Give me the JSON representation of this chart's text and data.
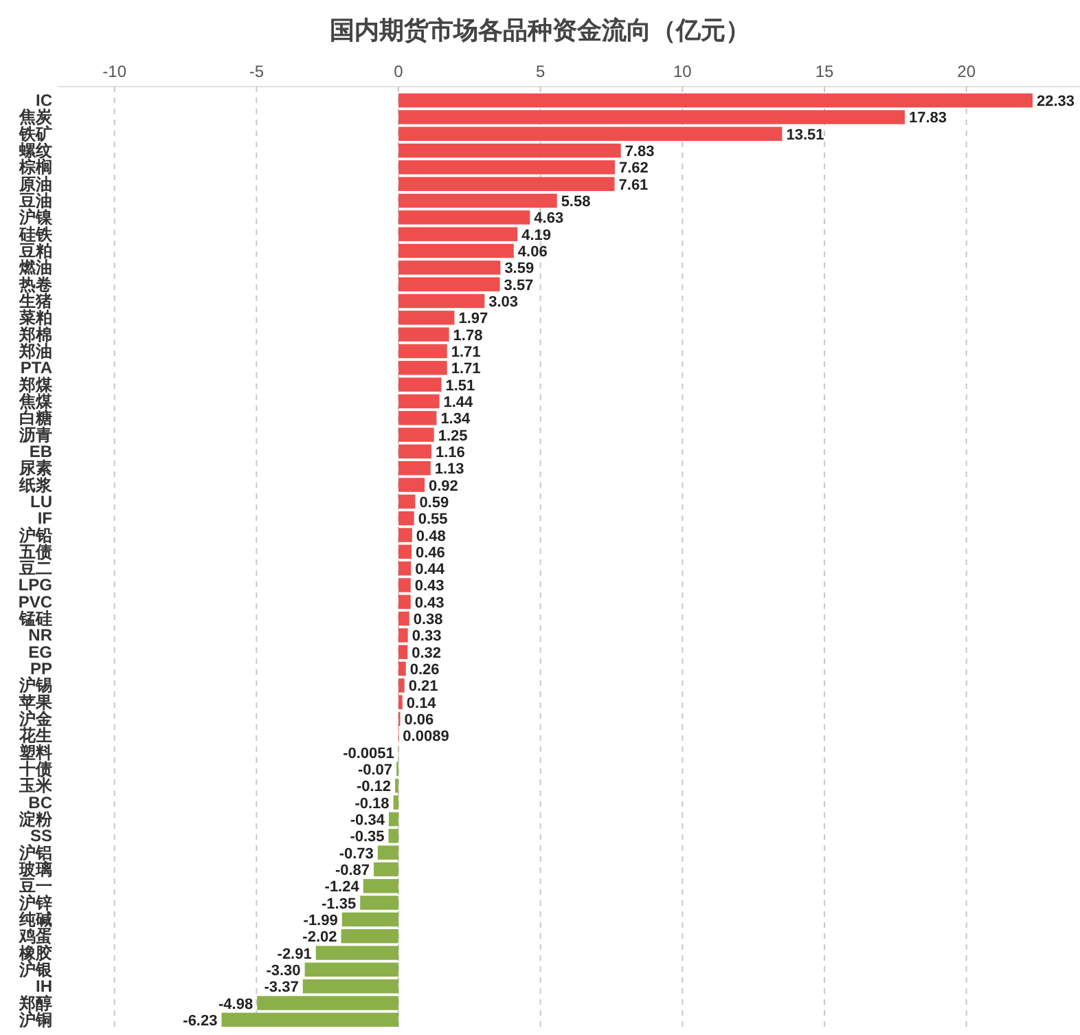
{
  "chart_data": {
    "type": "bar",
    "orientation": "horizontal",
    "title": "国内期货市场各品种资金流向（亿元）",
    "categories": [
      "IC",
      "焦炭",
      "铁矿",
      "螺纹",
      "棕榈",
      "原油",
      "豆油",
      "沪镍",
      "硅铁",
      "豆粕",
      "燃油",
      "热卷",
      "生猪",
      "菜粕",
      "郑棉",
      "郑油",
      "PTA",
      "郑煤",
      "焦煤",
      "白糖",
      "沥青",
      "EB",
      "尿素",
      "纸浆",
      "LU",
      "IF",
      "沪铅",
      "五债",
      "豆二",
      "LPG",
      "PVC",
      "锰硅",
      "NR",
      "EG",
      "PP",
      "沪锡",
      "苹果",
      "沪金",
      "花生",
      "塑料",
      "十债",
      "玉米",
      "BC",
      "淀粉",
      "SS",
      "沪铝",
      "玻璃",
      "豆一",
      "沪锌",
      "纯碱",
      "鸡蛋",
      "橡胶",
      "沪银",
      "IH",
      "郑醇",
      "沪铜"
    ],
    "values": [
      22.33,
      17.83,
      13.51,
      7.83,
      7.62,
      7.61,
      5.58,
      4.63,
      4.19,
      4.06,
      3.59,
      3.57,
      3.03,
      1.97,
      1.78,
      1.71,
      1.71,
      1.51,
      1.44,
      1.34,
      1.25,
      1.16,
      1.13,
      0.92,
      0.59,
      0.55,
      0.48,
      0.46,
      0.44,
      0.43,
      0.43,
      0.38,
      0.33,
      0.32,
      0.26,
      0.21,
      0.14,
      0.06,
      0.0089,
      -0.0051,
      -0.07,
      -0.12,
      -0.18,
      -0.34,
      -0.35,
      -0.73,
      -0.87,
      -1.24,
      -1.35,
      -1.99,
      -2.02,
      -2.91,
      -3.3,
      -3.37,
      -4.98,
      -6.23
    ],
    "value_labels": [
      "22.33",
      "17.83",
      "13.51",
      "7.83",
      "7.62",
      "7.61",
      "5.58",
      "4.63",
      "4.19",
      "4.06",
      "3.59",
      "3.57",
      "3.03",
      "1.97",
      "1.78",
      "1.71",
      "1.71",
      "1.51",
      "1.44",
      "1.34",
      "1.25",
      "1.16",
      "1.13",
      "0.92",
      "0.59",
      "0.55",
      "0.48",
      "0.46",
      "0.44",
      "0.43",
      "0.43",
      "0.38",
      "0.33",
      "0.32",
      "0.26",
      "0.21",
      "0.14",
      "0.06",
      "0.0089",
      "-0.0051",
      "-0.07",
      "-0.12",
      "-0.18",
      "-0.34",
      "-0.35",
      "-0.73",
      "-0.87",
      "-1.24",
      "-1.35",
      "-1.99",
      "-2.02",
      "-2.91",
      "-3.30",
      "-3.37",
      "-4.98",
      "-6.23"
    ],
    "colors": [
      "#ef4e4e",
      "#ef4e4e",
      "#ef4e4e",
      "#ef4e4e",
      "#ef4e4e",
      "#ef4e4e",
      "#ef4e4e",
      "#ef4e4e",
      "#ef4e4e",
      "#ef4e4e",
      "#ef4e4e",
      "#ef4e4e",
      "#ef4e4e",
      "#ef4e4e",
      "#ef4e4e",
      "#ef4e4e",
      "#ef4e4e",
      "#ef4e4e",
      "#ef4e4e",
      "#ef4e4e",
      "#ef4e4e",
      "#ef4e4e",
      "#ef4e4e",
      "#ef4e4e",
      "#ef4e4e",
      "#ef4e4e",
      "#ef4e4e",
      "#ef4e4e",
      "#ef4e4e",
      "#ef4e4e",
      "#ef4e4e",
      "#ef4e4e",
      "#ef4e4e",
      "#ef4e4e",
      "#ef4e4e",
      "#ef4e4e",
      "#ef4e4e",
      "#ef4e4e",
      "#ef4e4e",
      "#8bb04a",
      "#8bb04a",
      "#8bb04a",
      "#8bb04a",
      "#8bb04a",
      "#8bb04a",
      "#8bb04a",
      "#8bb04a",
      "#8bb04a",
      "#8bb04a",
      "#8bb04a",
      "#8bb04a",
      "#8bb04a",
      "#8bb04a",
      "#8bb04a",
      "#8bb04a",
      "#8bb04a"
    ],
    "xlim": [
      -12,
      24
    ],
    "xticks": [
      -10,
      -5,
      0,
      5,
      10,
      15,
      20
    ],
    "grid": "x"
  }
}
